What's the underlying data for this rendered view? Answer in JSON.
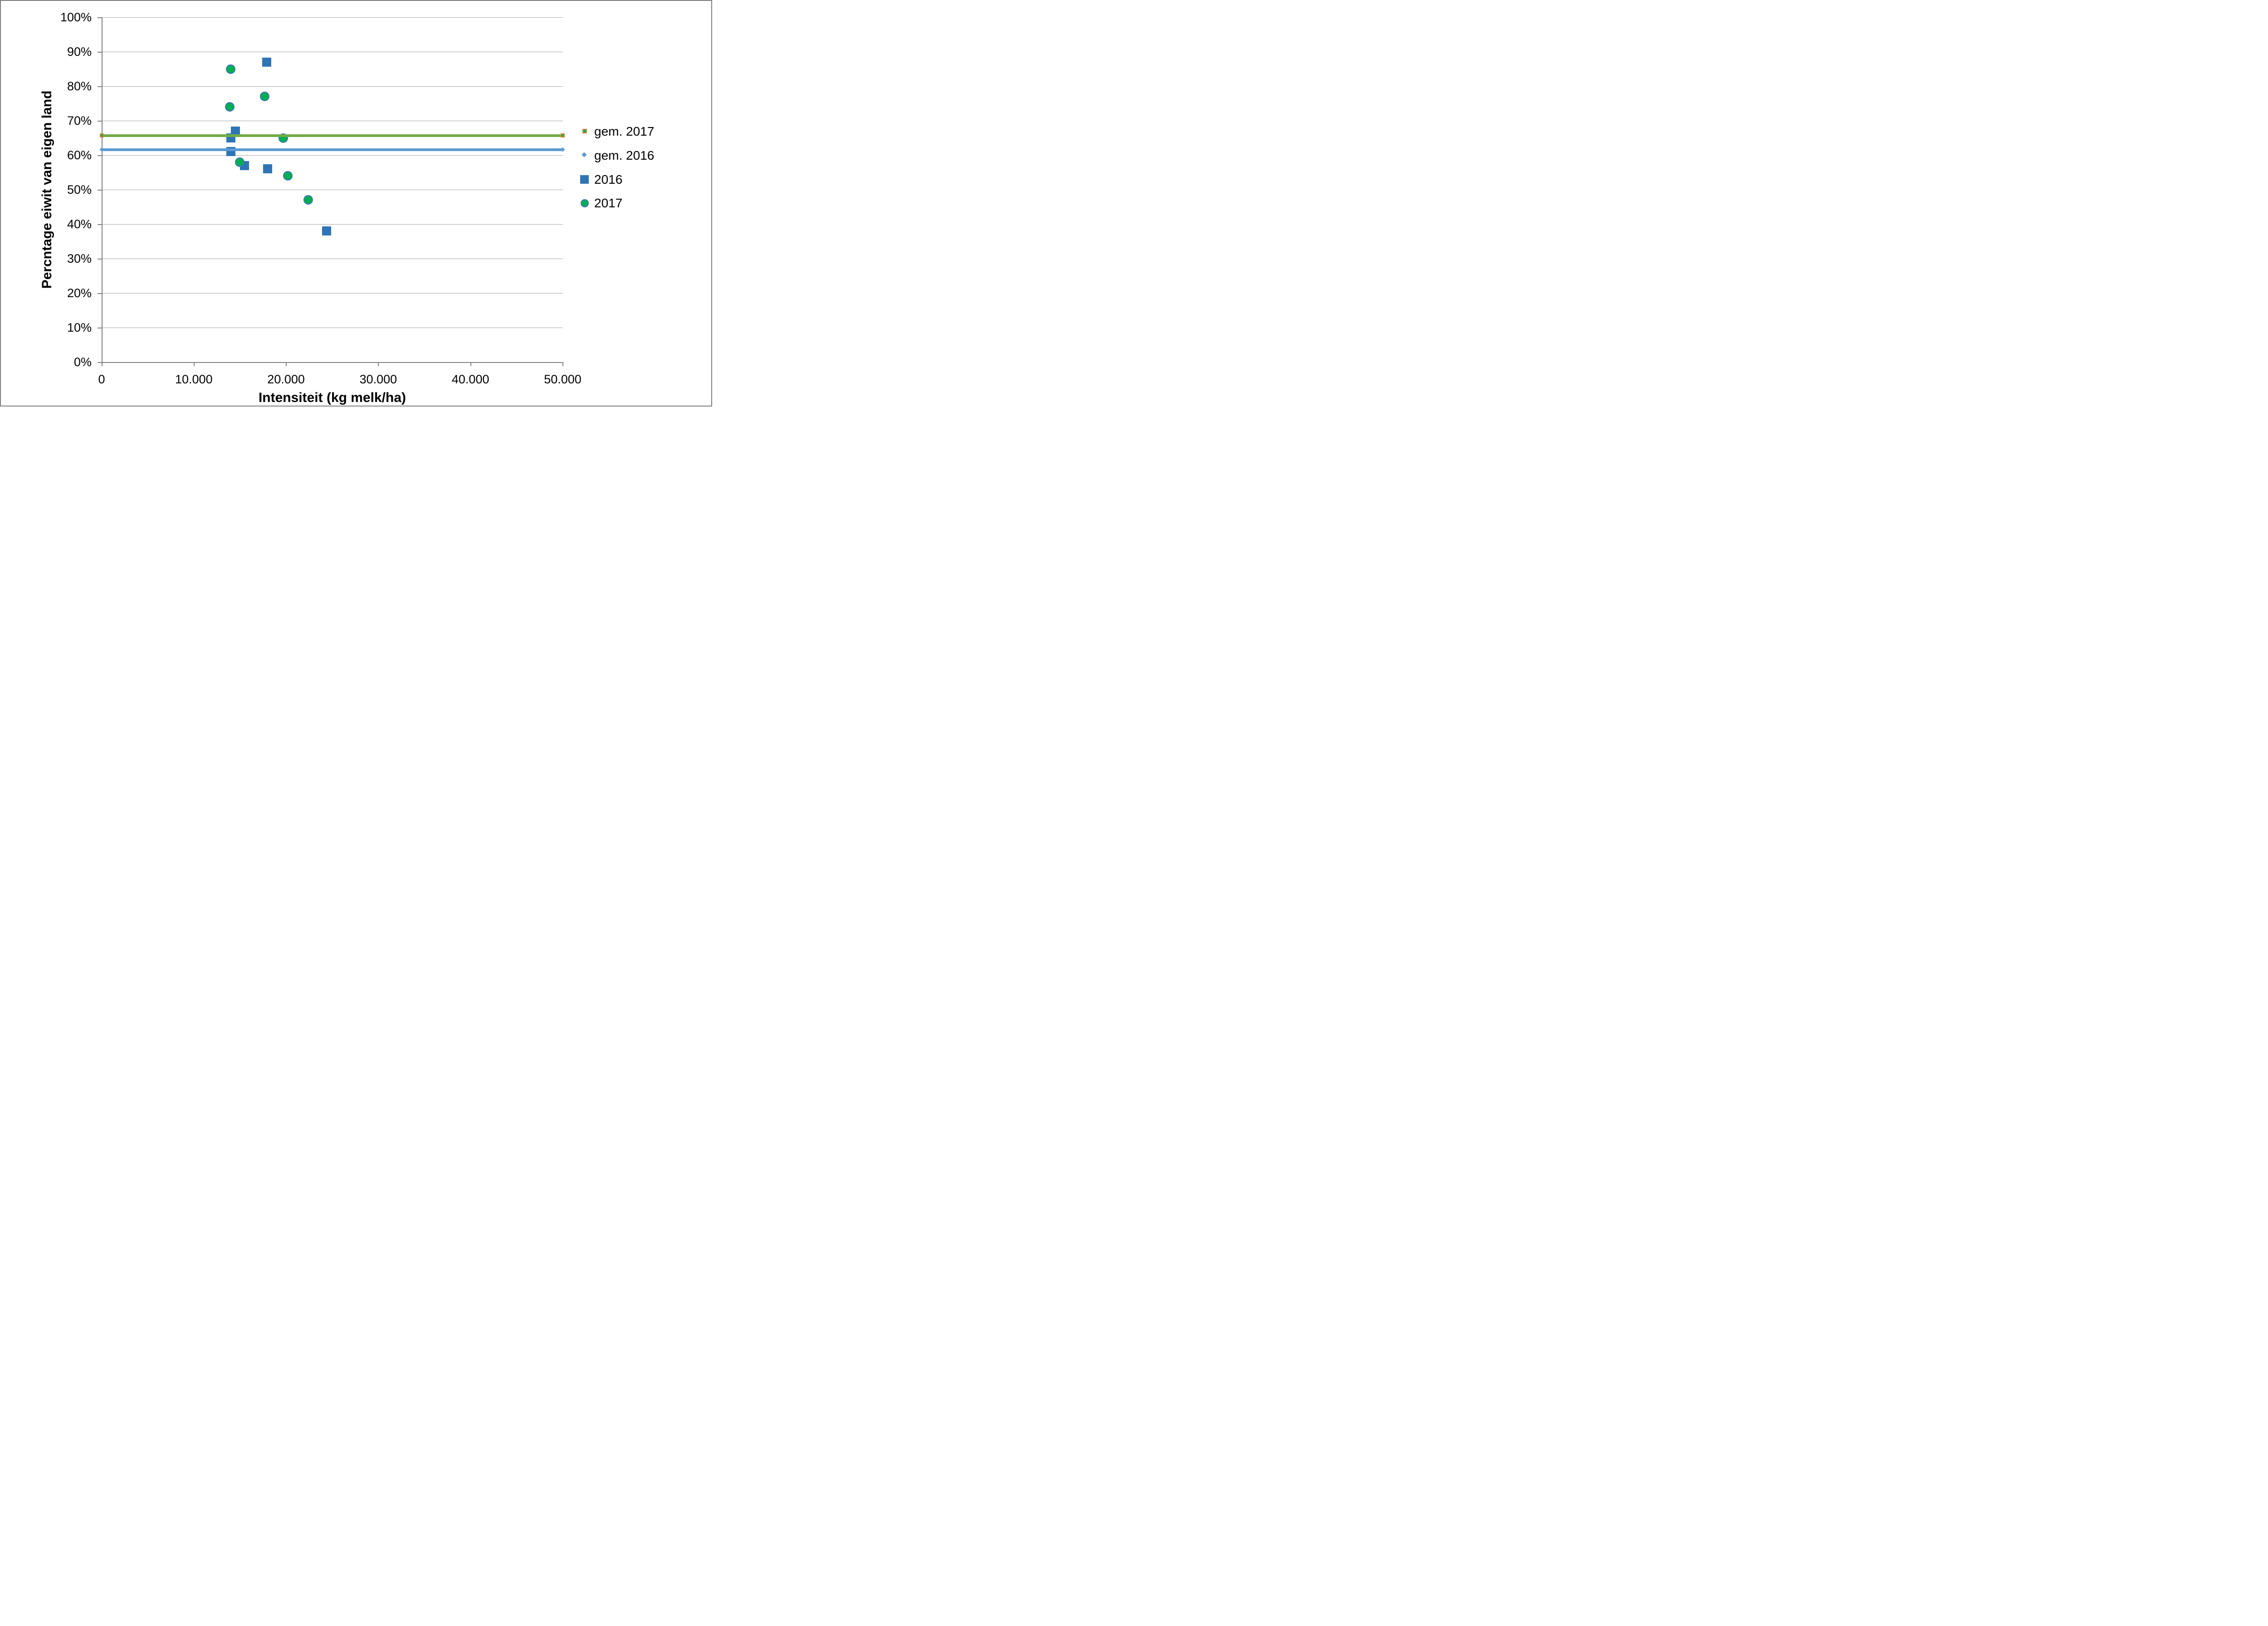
{
  "chart_data": {
    "type": "scatter",
    "title": "",
    "xlabel": "Intensiteit (kg melk/ha)",
    "ylabel": "Percntage eiwit van eigen land",
    "xlim": [
      0,
      50000
    ],
    "ylim": [
      0,
      100
    ],
    "grid": "horizontal-only",
    "legend_position": "right-middle",
    "x_ticks": [
      {
        "value": 0,
        "label": "0"
      },
      {
        "value": 10000,
        "label": "10.000"
      },
      {
        "value": 20000,
        "label": "20.000"
      },
      {
        "value": 30000,
        "label": "30.000"
      },
      {
        "value": 40000,
        "label": "40.000"
      },
      {
        "value": 50000,
        "label": "50.000"
      }
    ],
    "y_ticks": [
      {
        "value": 0,
        "label": "0%"
      },
      {
        "value": 10,
        "label": "10%"
      },
      {
        "value": 20,
        "label": "20%"
      },
      {
        "value": 30,
        "label": "30%"
      },
      {
        "value": 40,
        "label": "40%"
      },
      {
        "value": 50,
        "label": "50%"
      },
      {
        "value": 60,
        "label": "60%"
      },
      {
        "value": 70,
        "label": "70%"
      },
      {
        "value": 80,
        "label": "80%"
      },
      {
        "value": 90,
        "label": "90%"
      },
      {
        "value": 100,
        "label": "100%"
      }
    ],
    "series": [
      {
        "name": "2016",
        "type": "scatter",
        "marker": "square",
        "color": "#2E75B6",
        "points": [
          {
            "x": 17900,
            "y": 87
          },
          {
            "x": 14500,
            "y": 67
          },
          {
            "x": 14000,
            "y": 65
          },
          {
            "x": 14000,
            "y": 61
          },
          {
            "x": 15500,
            "y": 57
          },
          {
            "x": 18000,
            "y": 56
          },
          {
            "x": 24400,
            "y": 38
          }
        ]
      },
      {
        "name": "2017",
        "type": "scatter",
        "marker": "circle",
        "color": "#00B050",
        "marker_border": "#4472C4",
        "points": [
          {
            "x": 14000,
            "y": 85
          },
          {
            "x": 17700,
            "y": 77
          },
          {
            "x": 13900,
            "y": 74
          },
          {
            "x": 19700,
            "y": 65
          },
          {
            "x": 15000,
            "y": 58
          },
          {
            "x": 20200,
            "y": 54
          },
          {
            "x": 22400,
            "y": 47
          }
        ]
      },
      {
        "name": "gem. 2017",
        "type": "hline",
        "y": 65.7,
        "x_start": 0,
        "x_end": 50000,
        "color": "#70AD47",
        "marker": "square",
        "marker_fill": "#00B050",
        "marker_border": "#ED7D31"
      },
      {
        "name": "gem. 2016",
        "type": "hline",
        "y": 61.6,
        "x_start": 0,
        "x_end": 50000,
        "color": "#5B9BD5",
        "marker": "diamond",
        "marker_fill": "#5B9BD5"
      }
    ],
    "legend": [
      {
        "label": "gem. 2017",
        "marker": "small-square-orange-border",
        "fill": "#00B050",
        "border": "#ED7D31"
      },
      {
        "label": "gem. 2016",
        "marker": "small-diamond",
        "fill": "#5B9BD5"
      },
      {
        "label": "2016",
        "marker": "big-square",
        "fill": "#2E75B6"
      },
      {
        "label": "2017",
        "marker": "circle",
        "fill": "#00B050",
        "border": "#4472C4"
      }
    ]
  },
  "style_colors": {
    "gridline": "#A6A6A6",
    "axis": "#808080",
    "frame_border": "#7F7F7F",
    "background": "#FFFFFF",
    "text": "#000000"
  }
}
